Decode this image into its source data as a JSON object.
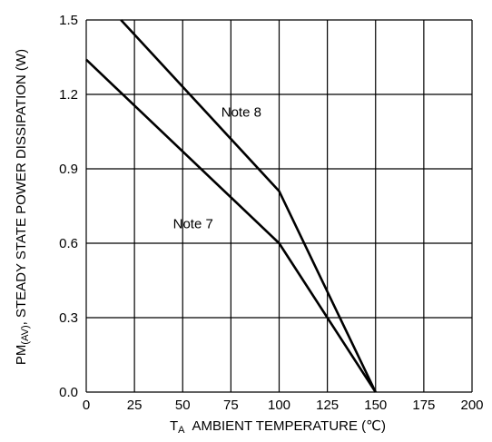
{
  "chart_data": {
    "type": "line",
    "title": "",
    "xlabel": {
      "symbol_main": "T",
      "symbol_sub": "A",
      "text": "AMBIENT TEMPERATURE (℃)"
    },
    "ylabel": {
      "symbol_main": "PM",
      "symbol_sub": "(AV)",
      "text": ", STEADY STATE POWER DISSIPATION (W)"
    },
    "xlim": [
      0,
      200
    ],
    "ylim": [
      0,
      1.5
    ],
    "x_ticks": [
      "0",
      "25",
      "50",
      "75",
      "100",
      "125",
      "150",
      "175",
      "200"
    ],
    "y_ticks": [
      "0.0",
      "0.3",
      "0.6",
      "0.9",
      "1.2",
      "1.5"
    ],
    "grid": true,
    "series": [
      {
        "name": "Note 8",
        "points": [
          [
            18,
            1.5
          ],
          [
            100,
            0.81
          ],
          [
            150,
            0
          ]
        ]
      },
      {
        "name": "Note 7",
        "points": [
          [
            0,
            1.34
          ],
          [
            100,
            0.6
          ],
          [
            150,
            0
          ]
        ]
      }
    ],
    "annotations": [
      {
        "text": "Note 8",
        "x": 70,
        "y": 1.11
      },
      {
        "text": "Note 7",
        "x": 45,
        "y": 0.66
      }
    ]
  }
}
